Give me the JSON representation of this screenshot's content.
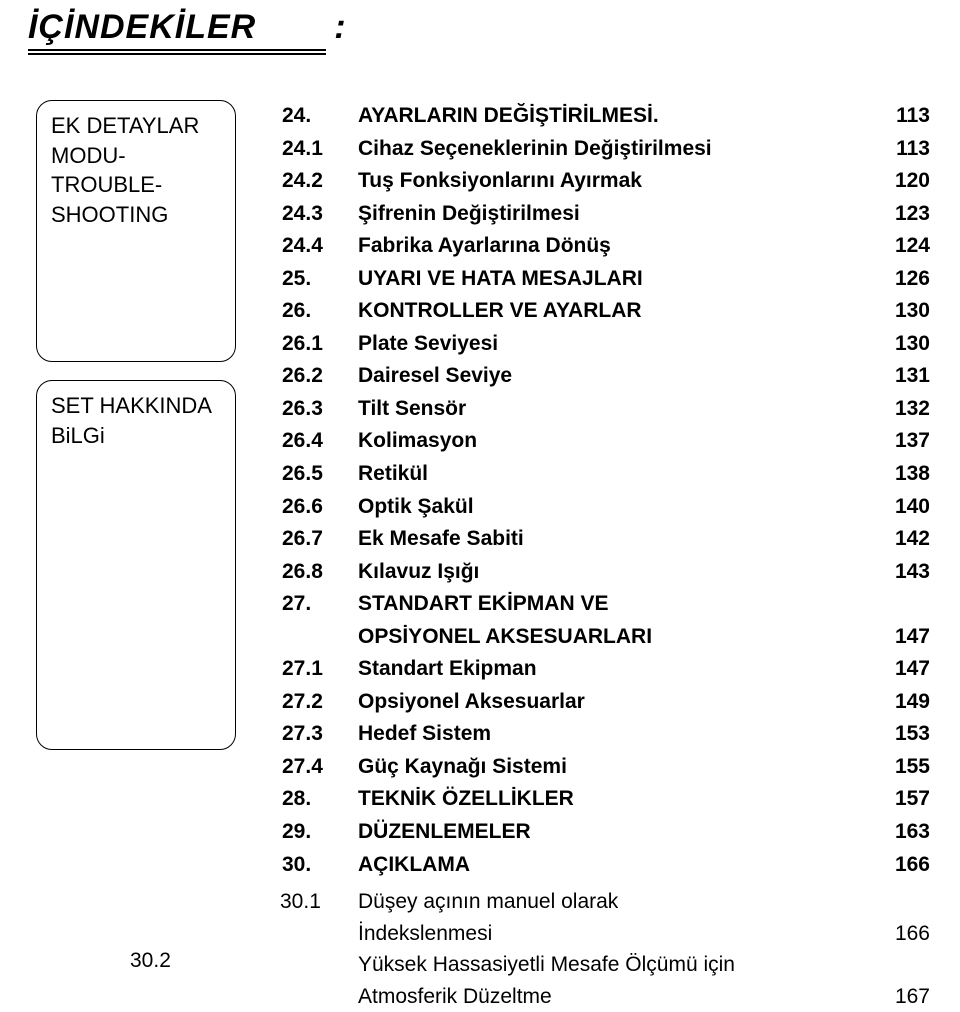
{
  "title": {
    "main": "İÇİNDEKİLER",
    "colon": ":"
  },
  "sidebar": {
    "box1": {
      "line1": "EK DETAYLAR",
      "line2": "MODU-",
      "line3": "TROUBLE-",
      "line4": "SHOOTING"
    },
    "box2": {
      "line1": "SET HAKKINDA",
      "line2": "BiLGi"
    }
  },
  "toc": [
    {
      "type": "section",
      "num": "24.",
      "text": "AYARLARIN DEĞİŞTİRİLMESİ.",
      "page": "113"
    },
    {
      "type": "sub",
      "num": "24.1",
      "text": "Cihaz Seçeneklerinin Değiştirilmesi",
      "page": "113"
    },
    {
      "type": "sub",
      "num": "24.2",
      "text": "Tuş Fonksiyonlarını Ayırmak",
      "page": "120"
    },
    {
      "type": "sub",
      "num": "24.3",
      "text": "Şifrenin Değiştirilmesi",
      "page": "123"
    },
    {
      "type": "sub",
      "num": "24.4",
      "text": "Fabrika Ayarlarına Dönüş",
      "page": "124"
    },
    {
      "type": "section",
      "num": "25.",
      "text": "UYARI VE HATA MESAJLARI",
      "page": "126"
    },
    {
      "type": "section",
      "num": "26.",
      "text": "KONTROLLER VE AYARLAR",
      "page": "130"
    },
    {
      "type": "sub",
      "num": "26.1",
      "text": "Plate Seviyesi",
      "page": "130"
    },
    {
      "type": "sub",
      "num": "26.2",
      "text": "Dairesel Seviye",
      "page": "131"
    },
    {
      "type": "sub",
      "num": "26.3",
      "text": "Tilt Sensör",
      "page": "132"
    },
    {
      "type": "sub",
      "num": "26.4",
      "text": "Kolimasyon",
      "page": "137"
    },
    {
      "type": "sub",
      "num": "26.5",
      "text": "Retikül",
      "page": "138"
    },
    {
      "type": "sub",
      "num": "26.6",
      "text": "Optik Şakül",
      "page": "140"
    },
    {
      "type": "sub",
      "num": "26.7",
      "text": "Ek Mesafe Sabiti",
      "page": "142"
    },
    {
      "type": "sub",
      "num": "26.8",
      "text": "Kılavuz Işığı",
      "page": "143"
    },
    {
      "type": "section",
      "num": "27.",
      "text": "STANDART EKİPMAN VE",
      "page": ""
    },
    {
      "type": "section-cont",
      "text": "OPSİYONEL AKSESUARLARI",
      "page": "147"
    },
    {
      "type": "sub",
      "num": "27.1",
      "text": "Standart Ekipman",
      "page": "147"
    },
    {
      "type": "sub",
      "num": "27.2",
      "text": "Opsiyonel Aksesuarlar",
      "page": "149"
    },
    {
      "type": "sub",
      "num": "27.3",
      "text": "Hedef Sistem",
      "page": "153"
    },
    {
      "type": "sub",
      "num": "27.4",
      "text": "Güç Kaynağı Sistemi",
      "page": "155"
    },
    {
      "type": "section",
      "num": "28.",
      "text": "TEKNİK ÖZELLİKLER",
      "page": "157"
    },
    {
      "type": "section",
      "num": "29.",
      "text": "DÜZENLEMELER",
      "page": "163"
    },
    {
      "type": "section",
      "num": "30.",
      "text": "AÇIKLAMA",
      "page": "166"
    }
  ],
  "foot": {
    "r1": {
      "num": "30.1",
      "text": "Düşey açının manuel olarak"
    },
    "r2": {
      "text": "İndekslenmesi",
      "page": "166"
    },
    "r3": {
      "num": "30.2",
      "text": "Yüksek Hassasiyetli Mesafe Ölçümü için"
    },
    "r4": {
      "text": "Atmosferik Düzeltme",
      "page": "167"
    }
  }
}
